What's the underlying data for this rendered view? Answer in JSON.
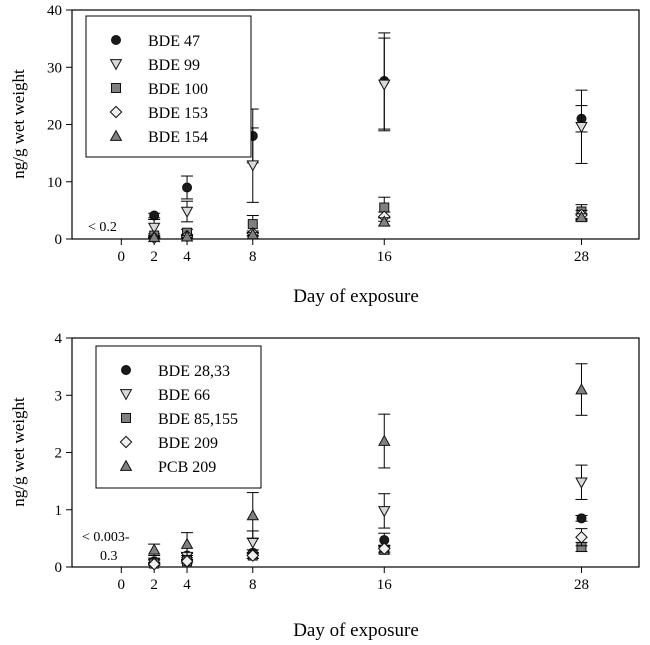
{
  "chart_data": [
    {
      "type": "scatter",
      "title": "",
      "xlabel": "Day of exposure",
      "ylabel": "ng/g wet weight",
      "x_ticks": [
        0,
        2,
        4,
        8,
        16,
        28
      ],
      "y_ticks": [
        0,
        10,
        20,
        30,
        40
      ],
      "xlim": [
        -3,
        31.5
      ],
      "ylim": [
        0,
        40
      ],
      "annotation": "< 0.2",
      "legend_position": "top-left",
      "series": [
        {
          "name": "BDE 47",
          "marker": "circle",
          "color": "#1a1a1a",
          "x": [
            2,
            4,
            8,
            16,
            28
          ],
          "y": [
            4.1,
            9.0,
            18.0,
            27.6,
            21.0
          ],
          "err": [
            0.4,
            2.0,
            4.7,
            8.4,
            2.3
          ]
        },
        {
          "name": "BDE 99",
          "marker": "triangle-down",
          "color": "#d9d9d9",
          "x": [
            2,
            4,
            8,
            16,
            28
          ],
          "y": [
            2.0,
            4.8,
            12.9,
            27.0,
            19.6
          ],
          "err": [
            1.4,
            1.8,
            6.5,
            8.1,
            6.4
          ]
        },
        {
          "name": "BDE 100",
          "marker": "square",
          "color": "#808080",
          "x": [
            2,
            4,
            8,
            16,
            28
          ],
          "y": [
            0.6,
            1.1,
            2.6,
            5.5,
            4.8
          ],
          "err": [
            0.3,
            0.6,
            1.5,
            1.8,
            1.2
          ]
        },
        {
          "name": "BDE 153",
          "marker": "diamond",
          "color": "#efefef",
          "x": [
            2,
            4,
            8,
            16,
            28
          ],
          "y": [
            0.2,
            0.5,
            1.0,
            3.9,
            4.2
          ],
          "err": [
            0.1,
            0.3,
            0.4,
            0.8,
            0.8
          ]
        },
        {
          "name": "BDE 154",
          "marker": "triangle-up",
          "color": "#808080",
          "x": [
            2,
            4,
            8,
            16,
            28
          ],
          "y": [
            0.3,
            0.4,
            0.8,
            3.0,
            3.8
          ],
          "err": [
            0.1,
            0.2,
            0.3,
            0.7,
            0.6
          ]
        }
      ]
    },
    {
      "type": "scatter",
      "title": "",
      "xlabel": "Day of exposure",
      "ylabel": "ng/g wet weight",
      "x_ticks": [
        0,
        2,
        4,
        8,
        16,
        28
      ],
      "y_ticks": [
        0,
        1,
        2,
        3,
        4
      ],
      "xlim": [
        -3,
        31.5
      ],
      "ylim": [
        0,
        4
      ],
      "annotation_lines": [
        "< 0.003-",
        "0.3"
      ],
      "legend_position": "top-left",
      "series": [
        {
          "name": "BDE 28,33",
          "marker": "circle",
          "color": "#1a1a1a",
          "x": [
            2,
            4,
            8,
            16,
            28
          ],
          "y": [
            0.1,
            0.2,
            0.25,
            0.47,
            0.85
          ],
          "err": [
            0.03,
            0.04,
            0.05,
            0.12,
            0.05
          ]
        },
        {
          "name": "BDE 66",
          "marker": "triangle-down",
          "color": "#d9d9d9",
          "x": [
            2,
            4,
            8,
            16,
            28
          ],
          "y": [
            0.08,
            0.18,
            0.43,
            0.98,
            1.48
          ],
          "err": [
            0.04,
            0.06,
            0.2,
            0.3,
            0.3
          ]
        },
        {
          "name": "BDE 85,155",
          "marker": "square",
          "color": "#808080",
          "x": [
            2,
            4,
            8,
            16,
            28
          ],
          "y": [
            0.06,
            0.1,
            0.2,
            0.3,
            0.35
          ],
          "err": [
            0.02,
            0.03,
            0.05,
            0.07,
            0.08
          ]
        },
        {
          "name": "BDE 209",
          "marker": "diamond",
          "color": "#efefef",
          "x": [
            2,
            4,
            8,
            16,
            28
          ],
          "y": [
            0.05,
            0.1,
            0.2,
            0.32,
            0.52
          ],
          "err": [
            0.02,
            0.03,
            0.05,
            0.06,
            0.15
          ]
        },
        {
          "name": "PCB 209",
          "marker": "triangle-up",
          "color": "#808080",
          "x": [
            2,
            4,
            8,
            16,
            28
          ],
          "y": [
            0.3,
            0.4,
            0.9,
            2.2,
            3.1
          ],
          "err": [
            0.1,
            0.2,
            0.4,
            0.47,
            0.45
          ]
        }
      ]
    }
  ]
}
